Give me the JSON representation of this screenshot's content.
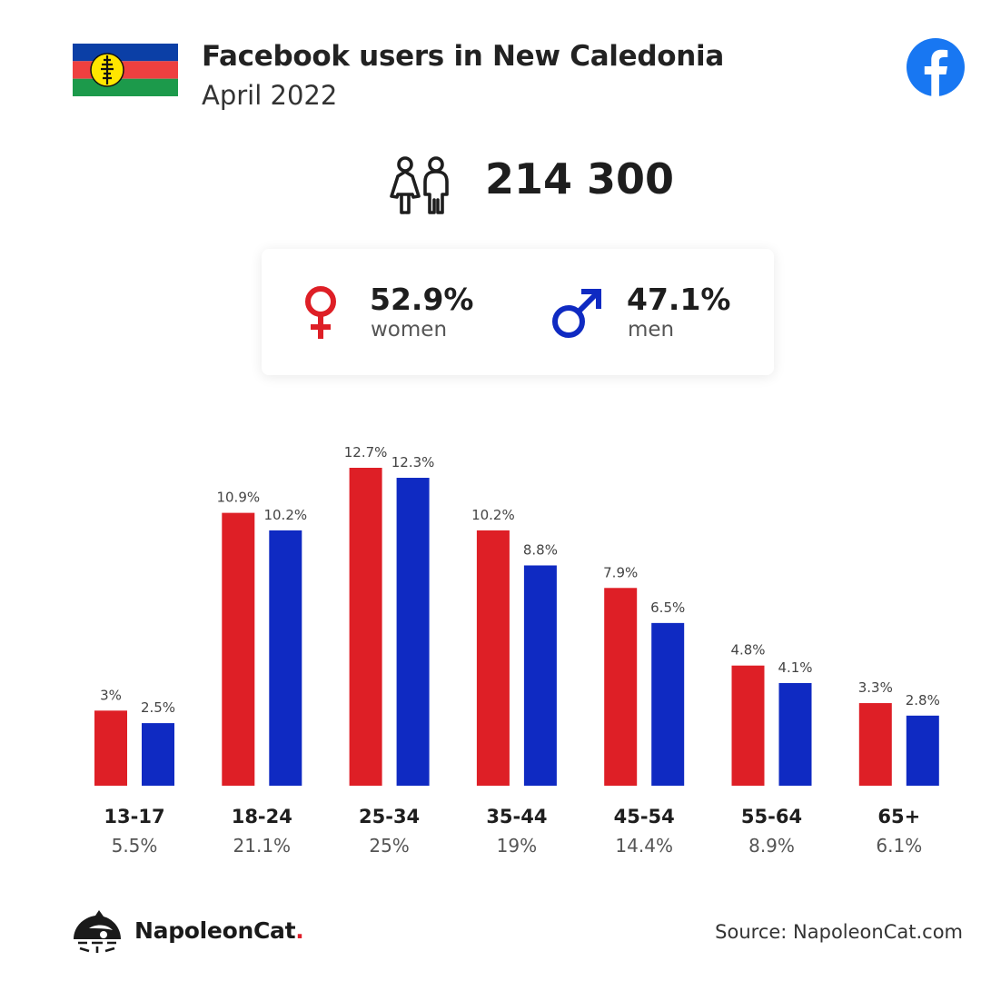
{
  "header": {
    "title": "Facebook users in New Caledonia",
    "subtitle": "April 2022"
  },
  "icons": {
    "flag": "new-caledonia-flag",
    "platform": "facebook-icon",
    "people": "people-icon",
    "female": "female-symbol-icon",
    "male": "male-symbol-icon",
    "brand": "napoleoncat-logo"
  },
  "total_users": "214 300",
  "gender": {
    "women": {
      "percent": "52.9%",
      "label": "women"
    },
    "men": {
      "percent": "47.1%",
      "label": "men"
    }
  },
  "colors": {
    "women": "#de1f26",
    "men": "#0f2ac2"
  },
  "chart_data": {
    "type": "bar",
    "categories": [
      "13-17",
      "18-24",
      "25-34",
      "35-44",
      "45-54",
      "55-64",
      "65+"
    ],
    "category_totals": [
      "5.5%",
      "21.1%",
      "25%",
      "19%",
      "14.4%",
      "8.9%",
      "6.1%"
    ],
    "series": [
      {
        "values": [
          3,
          10.9,
          12.7,
          10.2,
          7.9,
          4.8,
          3.3
        ],
        "labels": [
          "3%",
          "10.9%",
          "12.7%",
          "10.2%",
          "7.9%",
          "4.8%",
          "3.3%"
        ],
        "color": "#de1f26"
      },
      {
        "values": [
          2.5,
          10.2,
          12.3,
          8.8,
          6.5,
          4.1,
          2.8
        ],
        "labels": [
          "2.5%",
          "10.2%",
          "12.3%",
          "8.8%",
          "6.5%",
          "4.1%",
          "2.8%"
        ],
        "color": "#0f2ac2"
      }
    ],
    "unit": "%",
    "ylim": [
      0,
      12.7
    ],
    "grid": false,
    "legend": "none"
  },
  "footer": {
    "brand_name": "NapoleonCat",
    "brand_dot": ".",
    "source": "Source: NapoleonCat.com"
  }
}
